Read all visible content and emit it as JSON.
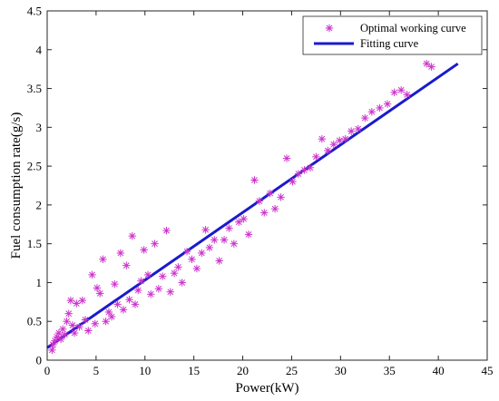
{
  "chart_data": {
    "type": "scatter",
    "title": "",
    "xlabel": "Power(kW)",
    "ylabel": "Fuel consumption rate(g/s)",
    "xlim": [
      0,
      45
    ],
    "ylim": [
      0,
      4.5
    ],
    "xticks": [
      0,
      5,
      10,
      15,
      20,
      25,
      30,
      35,
      40,
      45
    ],
    "yticks": [
      0,
      0.5,
      1,
      1.5,
      2,
      2.5,
      3,
      3.5,
      4,
      4.5
    ],
    "xtick_labels": [
      "0",
      "5",
      "10",
      "15",
      "20",
      "25",
      "30",
      "35",
      "40",
      "45"
    ],
    "ytick_labels": [
      "0",
      "0.5",
      "1",
      "1.5",
      "2",
      "2.5",
      "3",
      "3.5",
      "4",
      "4.5"
    ],
    "grid": false,
    "legend_position": "top-right",
    "series": [
      {
        "name": "Optimal working curve",
        "kind": "scatter",
        "marker": "asterisk",
        "color": "#cc33cc",
        "points": [
          [
            0.5,
            0.13
          ],
          [
            0.6,
            0.2
          ],
          [
            0.8,
            0.25
          ],
          [
            1.0,
            0.3
          ],
          [
            1.2,
            0.35
          ],
          [
            1.4,
            0.27
          ],
          [
            1.6,
            0.4
          ],
          [
            1.8,
            0.33
          ],
          [
            2.0,
            0.5
          ],
          [
            2.2,
            0.6
          ],
          [
            2.4,
            0.77
          ],
          [
            2.6,
            0.45
          ],
          [
            2.8,
            0.35
          ],
          [
            3.0,
            0.73
          ],
          [
            3.3,
            0.43
          ],
          [
            3.6,
            0.77
          ],
          [
            3.9,
            0.52
          ],
          [
            4.2,
            0.38
          ],
          [
            4.6,
            1.1
          ],
          [
            4.9,
            0.47
          ],
          [
            5.1,
            0.93
          ],
          [
            5.4,
            0.86
          ],
          [
            5.7,
            1.3
          ],
          [
            6.0,
            0.5
          ],
          [
            6.3,
            0.62
          ],
          [
            6.6,
            0.56
          ],
          [
            6.9,
            0.98
          ],
          [
            7.2,
            0.72
          ],
          [
            7.5,
            1.38
          ],
          [
            7.8,
            0.65
          ],
          [
            8.1,
            1.22
          ],
          [
            8.4,
            0.78
          ],
          [
            8.7,
            1.6
          ],
          [
            9.0,
            0.72
          ],
          [
            9.3,
            0.9
          ],
          [
            9.6,
            1.02
          ],
          [
            9.9,
            1.42
          ],
          [
            10.3,
            1.1
          ],
          [
            10.6,
            0.85
          ],
          [
            11.0,
            1.5
          ],
          [
            11.4,
            0.92
          ],
          [
            11.8,
            1.08
          ],
          [
            12.2,
            1.67
          ],
          [
            12.6,
            0.88
          ],
          [
            13.0,
            1.12
          ],
          [
            13.4,
            1.2
          ],
          [
            13.8,
            1.0
          ],
          [
            14.3,
            1.4
          ],
          [
            14.8,
            1.3
          ],
          [
            15.3,
            1.18
          ],
          [
            15.8,
            1.38
          ],
          [
            16.2,
            1.68
          ],
          [
            16.6,
            1.45
          ],
          [
            17.1,
            1.55
          ],
          [
            17.6,
            1.28
          ],
          [
            18.1,
            1.55
          ],
          [
            18.6,
            1.7
          ],
          [
            19.1,
            1.5
          ],
          [
            19.6,
            1.78
          ],
          [
            20.1,
            1.82
          ],
          [
            20.6,
            1.62
          ],
          [
            21.2,
            2.32
          ],
          [
            21.7,
            2.05
          ],
          [
            22.2,
            1.9
          ],
          [
            22.8,
            2.15
          ],
          [
            23.3,
            1.95
          ],
          [
            23.9,
            2.1
          ],
          [
            24.5,
            2.6
          ],
          [
            25.1,
            2.3
          ],
          [
            25.7,
            2.4
          ],
          [
            26.3,
            2.45
          ],
          [
            26.9,
            2.48
          ],
          [
            27.5,
            2.62
          ],
          [
            28.1,
            2.85
          ],
          [
            28.7,
            2.7
          ],
          [
            29.3,
            2.78
          ],
          [
            29.9,
            2.83
          ],
          [
            30.5,
            2.85
          ],
          [
            31.1,
            2.95
          ],
          [
            31.8,
            2.98
          ],
          [
            32.5,
            3.12
          ],
          [
            33.2,
            3.2
          ],
          [
            34.0,
            3.25
          ],
          [
            34.8,
            3.3
          ],
          [
            35.5,
            3.45
          ],
          [
            36.2,
            3.48
          ],
          [
            36.8,
            3.42
          ],
          [
            38.8,
            3.82
          ],
          [
            39.3,
            3.78
          ]
        ]
      },
      {
        "name": "Fitting curve",
        "kind": "line",
        "color": "#1a1acc",
        "points": [
          [
            0,
            0.16
          ],
          [
            42,
            3.82
          ]
        ]
      }
    ]
  }
}
